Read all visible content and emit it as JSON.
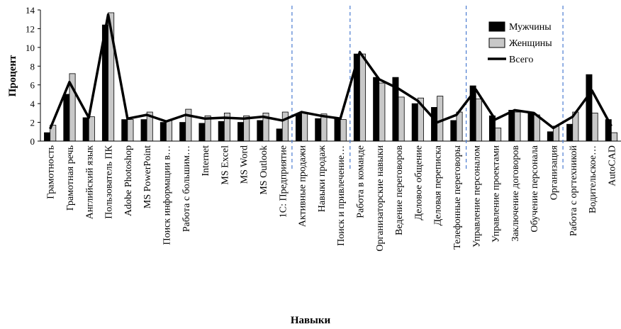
{
  "chart_data": {
    "type": "bar",
    "xlabel": "Навыки",
    "ylabel": "Процент",
    "ylim": [
      0,
      14
    ],
    "yticks": [
      "0",
      "2",
      "4",
      "6",
      "8",
      "10",
      "12",
      "14"
    ],
    "grid": false,
    "legend_position": "top-right",
    "categories": [
      "Грамотность",
      "Грамотная речь",
      "Английский язык",
      "Пользователь ПК",
      "Adobe Photoshop",
      "MS PowerPoint",
      "Поиск информации в…",
      "Работа с большим…",
      "Internet",
      "MS Excel",
      "MS Word",
      "MS Outlook",
      "1С: Предприятие",
      "Активные продажи",
      "Навыки продаж",
      "Поиск и привлечение…",
      "Работа в команде",
      "Организаторские навыки",
      "Ведение переговоров",
      "Деловое общение",
      "Деловая переписка",
      "Телефонные переговоры",
      "Управление персоналом",
      "Управление проектами",
      "Заключение договоров",
      "Обучение персонала",
      "Организация",
      "Работа с оргтехникой",
      "Водительское…",
      "AutoCAD"
    ],
    "series": [
      {
        "name": "Мужчины",
        "kind": "bar",
        "color": "#000000",
        "values": [
          0.9,
          5.0,
          2.5,
          12.4,
          2.3,
          2.3,
          2.0,
          2.0,
          1.9,
          2.1,
          2.0,
          2.2,
          1.3,
          2.9,
          2.4,
          2.4,
          9.3,
          6.8,
          6.8,
          4.0,
          3.6,
          2.2,
          5.9,
          2.7,
          3.3,
          3.0,
          1.0,
          1.8,
          7.1,
          2.3
        ]
      },
      {
        "name": "Женщины",
        "kind": "bar",
        "color": "#c8c8c8",
        "values": [
          1.7,
          7.2,
          2.6,
          13.7,
          2.3,
          3.1,
          2.2,
          3.4,
          2.7,
          3.0,
          2.7,
          3.0,
          3.1,
          3.0,
          2.9,
          2.3,
          9.3,
          6.2,
          4.7,
          4.6,
          4.8,
          3.1,
          4.5,
          1.4,
          3.1,
          2.8,
          1.6,
          3.1,
          3.0,
          0.9
        ]
      },
      {
        "name": "Всего",
        "kind": "line",
        "color": "#000000",
        "values": [
          1.3,
          6.3,
          2.5,
          13.5,
          2.4,
          2.8,
          2.1,
          2.8,
          2.4,
          2.5,
          2.4,
          2.6,
          2.2,
          3.1,
          2.7,
          2.4,
          9.5,
          6.6,
          5.6,
          4.3,
          2.0,
          2.8,
          5.5,
          2.3,
          3.3,
          3.0,
          1.4,
          2.6,
          5.4,
          1.6
        ]
      }
    ],
    "dividers_after_index": [
      12,
      15,
      21,
      26
    ]
  }
}
